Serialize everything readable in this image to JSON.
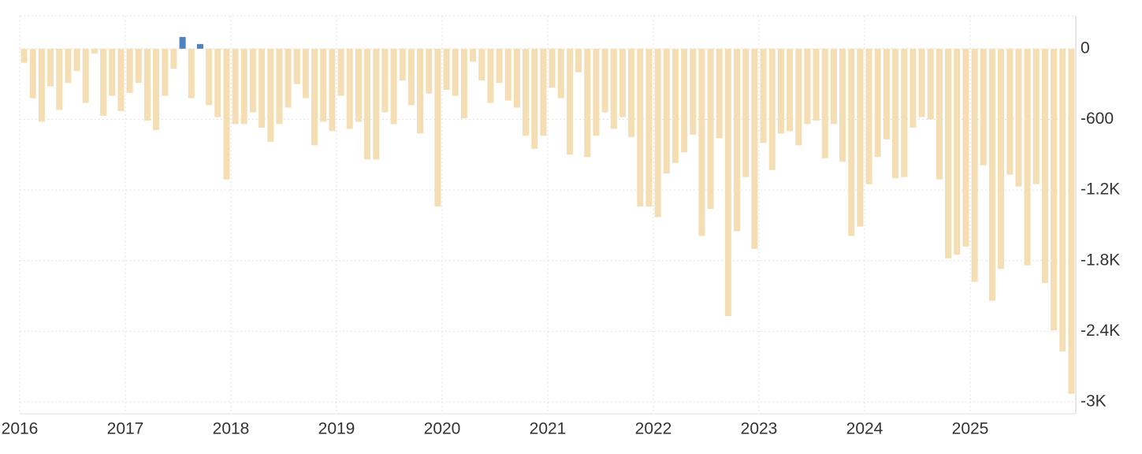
{
  "chart_data": {
    "type": "bar",
    "categories": [
      "2016",
      null,
      null,
      null,
      null,
      null,
      null,
      null,
      null,
      null,
      null,
      null,
      "2017",
      null,
      null,
      null,
      null,
      null,
      null,
      null,
      null,
      null,
      null,
      null,
      "2018",
      null,
      null,
      null,
      null,
      null,
      null,
      null,
      null,
      null,
      null,
      null,
      "2019",
      null,
      null,
      null,
      null,
      null,
      null,
      null,
      null,
      null,
      null,
      null,
      "2020",
      null,
      null,
      null,
      null,
      null,
      null,
      null,
      null,
      null,
      null,
      null,
      "2021",
      null,
      null,
      null,
      null,
      null,
      null,
      null,
      null,
      null,
      null,
      null,
      "2022",
      null,
      null,
      null,
      null,
      null,
      null,
      null,
      null,
      null,
      null,
      null,
      "2023",
      null,
      null,
      null,
      null,
      null,
      null,
      null,
      null,
      null,
      null,
      null,
      "2024",
      null,
      null,
      null,
      null,
      null,
      null,
      null,
      null,
      null,
      null,
      null,
      "2025",
      null,
      null,
      null,
      null,
      null,
      null,
      null,
      null,
      null,
      null,
      null
    ],
    "values": [
      -120,
      -420,
      -620,
      -320,
      -520,
      -290,
      -190,
      -460,
      -40,
      -570,
      -400,
      -530,
      -375,
      -290,
      -610,
      -690,
      -400,
      -170,
      100,
      -420,
      40,
      -480,
      -580,
      -1110,
      -640,
      -640,
      -540,
      -670,
      -790,
      -640,
      -500,
      -300,
      -420,
      -820,
      -620,
      -700,
      -400,
      -680,
      -620,
      -940,
      -940,
      -540,
      -640,
      -270,
      -480,
      -720,
      -380,
      -1340,
      -350,
      -400,
      -590,
      -110,
      -270,
      -460,
      -290,
      -440,
      -500,
      -740,
      -850,
      -740,
      -330,
      -420,
      -900,
      -200,
      -920,
      -740,
      -540,
      -680,
      -580,
      -750,
      -1340,
      -1340,
      -1430,
      -1060,
      -970,
      -880,
      -730,
      -1590,
      -1360,
      -760,
      -2270,
      -1550,
      -1090,
      -1700,
      -800,
      -1030,
      -720,
      -700,
      -820,
      -640,
      -610,
      -930,
      -640,
      -960,
      -1590,
      -1510,
      -1150,
      -920,
      -770,
      -1100,
      -1090,
      -670,
      -580,
      -600,
      -1110,
      -1780,
      -1750,
      -1680,
      -1980,
      -990,
      -2140,
      -1870,
      -1070,
      -1170,
      -1840,
      -1150,
      -1990,
      -2390,
      -2570,
      -2930
    ],
    "color": "#f5deb3",
    "positive_color": "#4f81bd",
    "ylim": [
      -3100,
      280
    ],
    "yticks": [
      0,
      -600,
      {
        "value": -1200,
        "label": "-1.2K"
      },
      {
        "value": -1800,
        "label": "-1.8K"
      },
      {
        "value": -2400,
        "label": "-2.4K"
      },
      {
        "value": -3000,
        "label": "-3K"
      }
    ],
    "grid": true
  }
}
